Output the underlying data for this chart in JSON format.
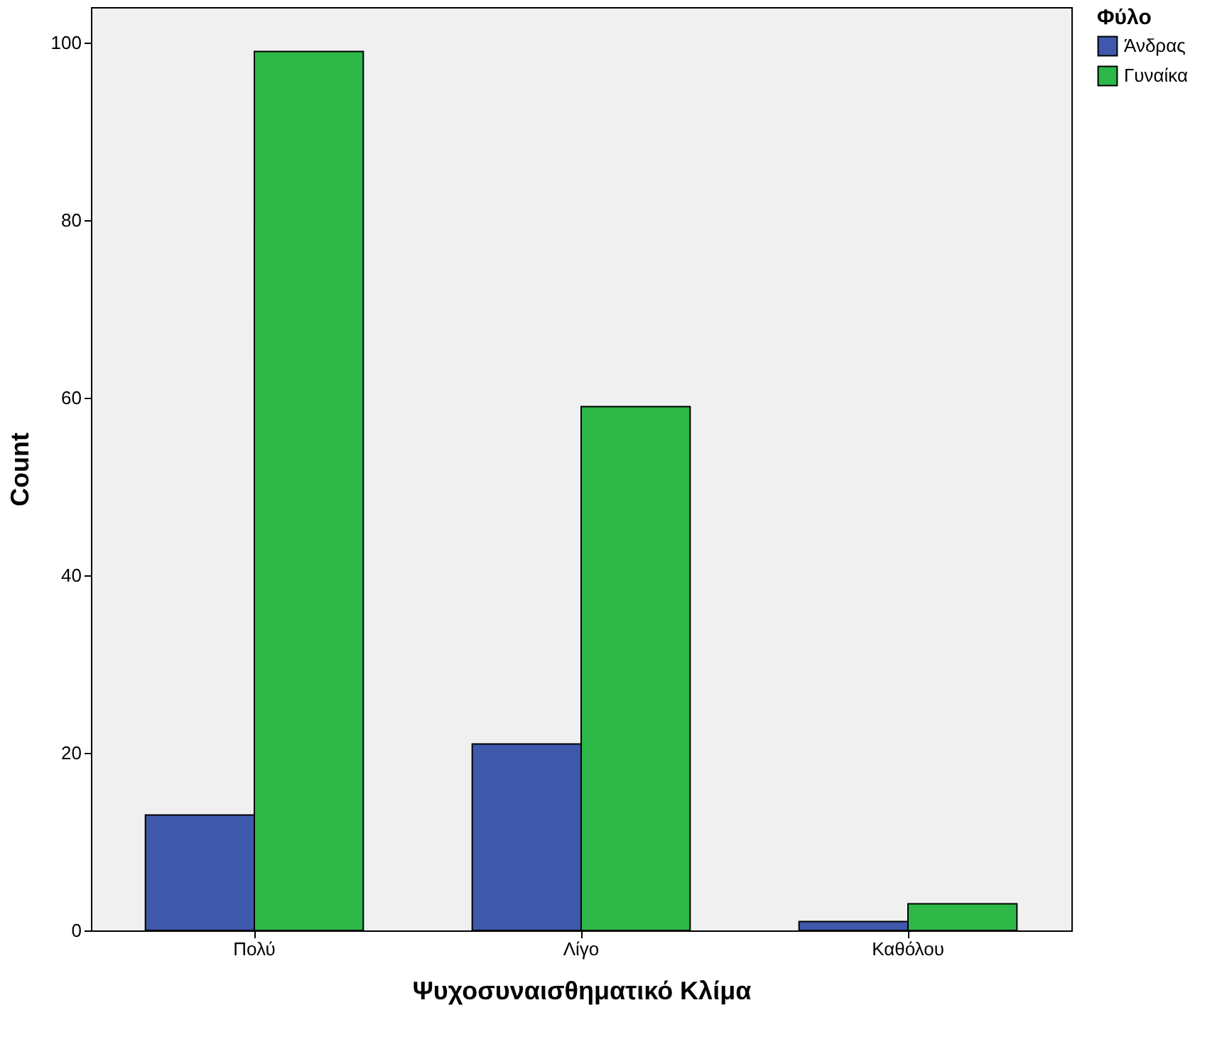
{
  "chart_data": {
    "type": "bar",
    "xlabel": "Ψυχοσυναισθηματικό Κλίμα",
    "ylabel": "Count",
    "legend_title": "Φύλο",
    "categories": [
      "Πολύ",
      "Λίγο",
      "Καθόλου"
    ],
    "series": [
      {
        "name": "Άνδρας",
        "color": "#3e58ac",
        "values": [
          13,
          21,
          1
        ]
      },
      {
        "name": "Γυναίκα",
        "color": "#2eb848",
        "values": [
          99,
          59,
          3
        ]
      }
    ],
    "ylim": [
      0,
      104
    ],
    "yticks": [
      0,
      20,
      40,
      60,
      80,
      100
    ],
    "grid": false,
    "legend": "top right"
  }
}
